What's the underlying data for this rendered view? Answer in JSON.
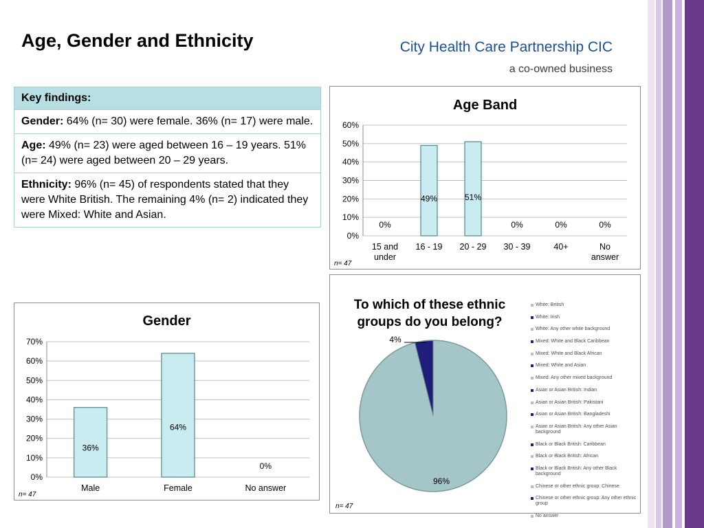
{
  "header": {
    "title": "Age, Gender and Ethnicity",
    "org_name": "City Health Care Partnership CIC",
    "org_tagline": "a co-owned business"
  },
  "key_findings": {
    "heading": "Key findings:",
    "gender": {
      "label": "Gender:",
      "text": " 64% (n= 30) were female.  36% (n= 17) were male."
    },
    "age": {
      "label": "Age:",
      "text": " 49% (n= 23) were aged between 16 – 19 years. 51% (n= 24) were aged between 20 – 29 years."
    },
    "ethnicity": {
      "label": "Ethnicity:",
      "text": " 96% (n= 45) of respondents stated that they were White British.  The remaining 4% (n= 2) indicated they were Mixed: White and Asian."
    }
  },
  "colors": {
    "bar_fill": "#c8ecef",
    "bar_stroke": "#5b8e93",
    "pie_main": "#a5c6c8",
    "pie_minor": "#1f1f7a",
    "stripe_purple": "#6a3a8a"
  },
  "chart_data": [
    {
      "type": "bar",
      "title": "Age Band",
      "categories": [
        "15 and\nunder",
        "16 - 19",
        "20 - 29",
        "30 - 39",
        "40+",
        "No\nanswer"
      ],
      "values": [
        0,
        49,
        51,
        0,
        0,
        0
      ],
      "data_labels": [
        "0%",
        "49%",
        "51%",
        "0%",
        "0%",
        "0%"
      ],
      "yticks": [
        "0%",
        "10%",
        "20%",
        "30%",
        "40%",
        "50%",
        "60%"
      ],
      "ylim": [
        0,
        60
      ],
      "grid": true,
      "note": "n= 47"
    },
    {
      "type": "bar",
      "title": "Gender",
      "categories": [
        "Male",
        "Female",
        "No answer"
      ],
      "values": [
        36,
        64,
        0
      ],
      "data_labels": [
        "36%",
        "64%",
        "0%"
      ],
      "yticks": [
        "0%",
        "10%",
        "20%",
        "30%",
        "40%",
        "50%",
        "60%",
        "70%"
      ],
      "ylim": [
        0,
        70
      ],
      "grid": true,
      "note": "n= 47"
    },
    {
      "type": "pie",
      "title": "To which of these ethnic groups do you belong?",
      "slices": [
        {
          "name": "White: British",
          "value": 96,
          "label": "96%"
        },
        {
          "name": "Mixed: White and Asian",
          "value": 4,
          "label": "4%"
        }
      ],
      "legend": [
        "White: British",
        "White: Irish",
        "White: Any other white background",
        "Mixed: White and Black Caribbean",
        "Mixed: White and Black African",
        "Mixed: White and Asian",
        "Mixed: Any other mixed background",
        "Asian or Asian British: Indian",
        "Asian or Asian British: Pakistani",
        "Asian or Asian British: Bangladeshi",
        "Asian or Asian British: Any other Asian background",
        "Black or Black British: Caribbean",
        "Black or Black British: African",
        "Black or Black British: Any other Black background",
        "Chinese or other ethnic group: Chinese",
        "Chinese or other ethnic group: Any other ethnic group",
        "No answer"
      ],
      "legend_colors": [
        "#a5c6c8",
        "#1f1f7a",
        "#a5c6c8",
        "#1f1f7a",
        "#a5c6c8",
        "#1f1f7a",
        "#a5c6c8",
        "#1f1f7a",
        "#a5c6c8",
        "#1f1f7a",
        "#a5c6c8",
        "#1f1f7a",
        "#a5c6c8",
        "#1f1f7a",
        "#a5c6c8",
        "#1f1f7a",
        "#a5c6c8"
      ],
      "legend_position": "right",
      "note": "n= 47"
    }
  ]
}
